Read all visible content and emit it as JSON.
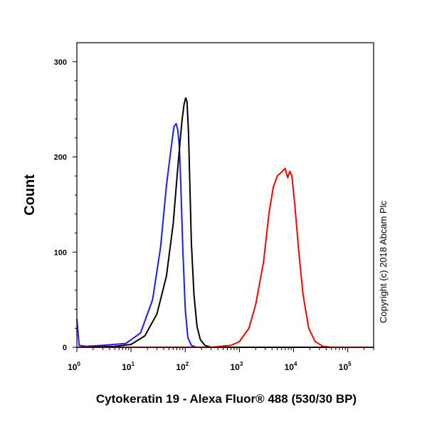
{
  "chart_data": {
    "type": "line",
    "title": "",
    "xlabel": "Cytokeratin 19 - Alexa Fluor® 488 (530/30 BP)",
    "ylabel": "Count",
    "x_scale": "log",
    "xlim": [
      1,
      300000
    ],
    "ylim": [
      0,
      320
    ],
    "y_ticks": [
      0,
      100,
      200,
      300
    ],
    "x_ticks": [
      {
        "value": 1,
        "base": "10",
        "exp": "0"
      },
      {
        "value": 10,
        "base": "10",
        "exp": "1"
      },
      {
        "value": 100,
        "base": "10",
        "exp": "2"
      },
      {
        "value": 1000,
        "base": "10",
        "exp": "3"
      },
      {
        "value": 10000,
        "base": "10",
        "exp": "4"
      },
      {
        "value": 100000,
        "base": "10",
        "exp": "5"
      }
    ],
    "grid": false,
    "legend": "none",
    "series": [
      {
        "color": "#1a1aff",
        "x": [
          1,
          1.1,
          1.5,
          3,
          8,
          15,
          25,
          35,
          45,
          55,
          62,
          68,
          73,
          78,
          83,
          90,
          100,
          112,
          130,
          160,
          250,
          1000,
          300000
        ],
        "y": [
          30,
          2,
          1,
          2,
          4,
          15,
          50,
          105,
          170,
          210,
          232,
          235,
          228,
          210,
          170,
          105,
          40,
          10,
          2,
          0,
          0,
          0,
          0
        ]
      },
      {
        "color": "#000000",
        "x": [
          1,
          5,
          10,
          18,
          30,
          45,
          60,
          72,
          80,
          88,
          95,
          102,
          108,
          115,
          122,
          130,
          145,
          165,
          190,
          230,
          300,
          1000,
          300000
        ],
        "y": [
          0,
          1,
          3,
          12,
          35,
          75,
          130,
          185,
          215,
          240,
          255,
          262,
          258,
          225,
          170,
          110,
          55,
          22,
          8,
          2,
          0,
          0,
          0
        ]
      },
      {
        "color": "#ff0000",
        "x": [
          1,
          300,
          700,
          1000,
          1500,
          2000,
          2800,
          3500,
          4200,
          5000,
          6000,
          7000,
          7800,
          8500,
          9300,
          10500,
          12500,
          15000,
          19000,
          25000,
          35000,
          50000,
          300000
        ],
        "y": [
          0,
          0,
          2,
          6,
          20,
          45,
          90,
          140,
          168,
          180,
          184,
          188,
          178,
          185,
          180,
          150,
          100,
          55,
          20,
          6,
          1,
          0,
          0
        ]
      }
    ],
    "side_note": "Copyright (c) 2018 Abcam Plc"
  }
}
